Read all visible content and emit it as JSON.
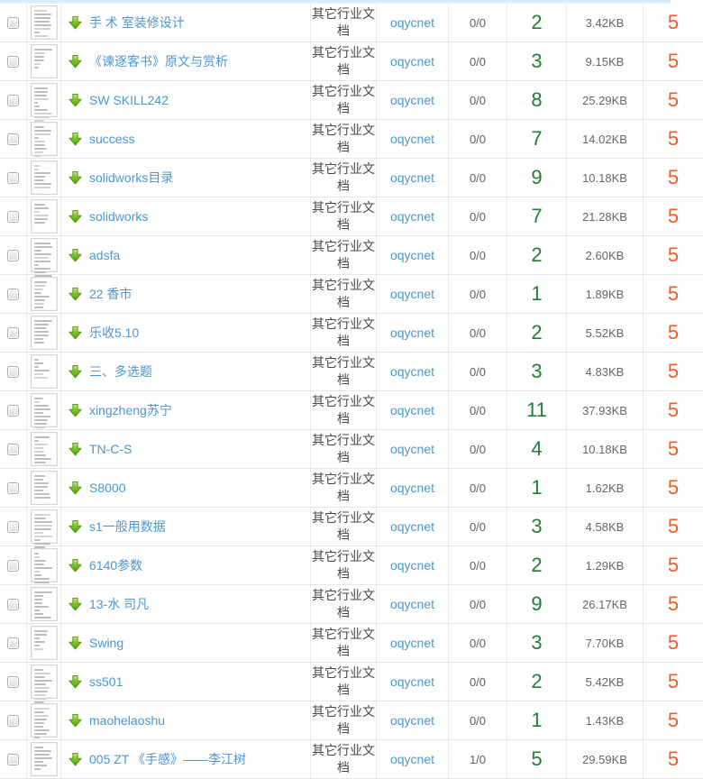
{
  "colors": {
    "link": "#4a97d2",
    "green": "#1e7e34",
    "orange": "#f25b24",
    "text_dark": "#4a4a4a",
    "text_gray": "#666666",
    "row_border": "#e6e6e6",
    "col_border": "#ececec",
    "strip": "#d9ecf9"
  },
  "icons": {
    "row_action": "green-download-arrow",
    "thumbnail": "document-page-preview"
  },
  "rows": [
    {
      "title": "手 术 室装修设计",
      "category": "其它行业文档",
      "uploader": "oqycnet",
      "ratio": "0/0",
      "downloads": "2",
      "size": "3.42KB",
      "score": "5"
    },
    {
      "title": "《谏逐客书》原文与赏析",
      "category": "其它行业文档",
      "uploader": "oqycnet",
      "ratio": "0/0",
      "downloads": "3",
      "size": "9.15KB",
      "score": "5"
    },
    {
      "title": "SW SKILL242",
      "category": "其它行业文档",
      "uploader": "oqycnet",
      "ratio": "0/0",
      "downloads": "8",
      "size": "25.29KB",
      "score": "5"
    },
    {
      "title": "success",
      "category": "其它行业文档",
      "uploader": "oqycnet",
      "ratio": "0/0",
      "downloads": "7",
      "size": "14.02KB",
      "score": "5"
    },
    {
      "title": "solidworks目录",
      "category": "其它行业文档",
      "uploader": "oqycnet",
      "ratio": "0/0",
      "downloads": "9",
      "size": "10.18KB",
      "score": "5"
    },
    {
      "title": "solidworks",
      "category": "其它行业文档",
      "uploader": "oqycnet",
      "ratio": "0/0",
      "downloads": "7",
      "size": "21.28KB",
      "score": "5"
    },
    {
      "title": "adsfa",
      "category": "其它行业文档",
      "uploader": "oqycnet",
      "ratio": "0/0",
      "downloads": "2",
      "size": "2.60KB",
      "score": "5"
    },
    {
      "title": "22 香市",
      "category": "其它行业文档",
      "uploader": "oqycnet",
      "ratio": "0/0",
      "downloads": "1",
      "size": "1.89KB",
      "score": "5"
    },
    {
      "title": "乐收5.10",
      "category": "其它行业文档",
      "uploader": "oqycnet",
      "ratio": "0/0",
      "downloads": "2",
      "size": "5.52KB",
      "score": "5"
    },
    {
      "title": "三、多选题",
      "category": "其它行业文档",
      "uploader": "oqycnet",
      "ratio": "0/0",
      "downloads": "3",
      "size": "4.83KB",
      "score": "5"
    },
    {
      "title": "xingzheng苏宁",
      "category": "其它行业文档",
      "uploader": "oqycnet",
      "ratio": "0/0",
      "downloads": "11",
      "size": "37.93KB",
      "score": "5"
    },
    {
      "title": "TN-C-S",
      "category": "其它行业文档",
      "uploader": "oqycnet",
      "ratio": "0/0",
      "downloads": "4",
      "size": "10.18KB",
      "score": "5"
    },
    {
      "title": "S8000",
      "category": "其它行业文档",
      "uploader": "oqycnet",
      "ratio": "0/0",
      "downloads": "1",
      "size": "1.62KB",
      "score": "5"
    },
    {
      "title": "s1一般用数据",
      "category": "其它行业文档",
      "uploader": "oqycnet",
      "ratio": "0/0",
      "downloads": "3",
      "size": "4.58KB",
      "score": "5"
    },
    {
      "title": "6140参数",
      "category": "其它行业文档",
      "uploader": "oqycnet",
      "ratio": "0/0",
      "downloads": "2",
      "size": "1.29KB",
      "score": "5"
    },
    {
      "title": "13-水 司凡",
      "category": "其它行业文档",
      "uploader": "oqycnet",
      "ratio": "0/0",
      "downloads": "9",
      "size": "26.17KB",
      "score": "5"
    },
    {
      "title": "Swing",
      "category": "其它行业文档",
      "uploader": "oqycnet",
      "ratio": "0/0",
      "downloads": "3",
      "size": "7.70KB",
      "score": "5"
    },
    {
      "title": "ss501",
      "category": "其它行业文档",
      "uploader": "oqycnet",
      "ratio": "0/0",
      "downloads": "2",
      "size": "5.42KB",
      "score": "5"
    },
    {
      "title": "maohelaoshu",
      "category": "其它行业文档",
      "uploader": "oqycnet",
      "ratio": "0/0",
      "downloads": "1",
      "size": "1.43KB",
      "score": "5"
    },
    {
      "title": "005 ZT 《手感》——李江树",
      "category": "其它行业文档",
      "uploader": "oqycnet",
      "ratio": "1/0",
      "downloads": "5",
      "size": "29.59KB",
      "score": "5"
    }
  ]
}
